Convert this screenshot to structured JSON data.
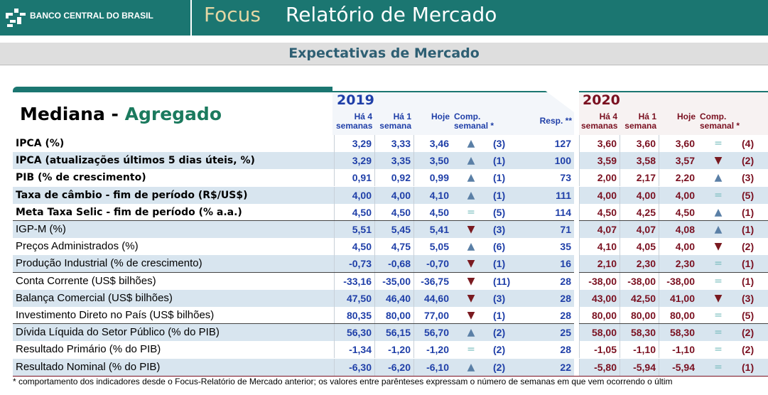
{
  "header": {
    "logo": "BANCO CENTRAL DO BRASIL",
    "brand": "Focus",
    "title": "Relatório de Mercado"
  },
  "subtitle": "Expectativas de Mercado",
  "table": {
    "title": [
      "Mediana - ",
      "Agregado"
    ],
    "years": [
      "2019",
      "2020"
    ],
    "cols2019": [
      "Há 4 semanas",
      "Há 1 semana",
      "Hoje",
      "Comp.\nsemanal *",
      "Resp. **"
    ],
    "cols2020": [
      "Há 4 semanas",
      "Há 1 semana",
      "Hoje",
      "Comp.\nsemanal *"
    ],
    "rows": [
      {
        "label": "IPCA (%)",
        "cells": [
          "3,29",
          "3,33",
          "3,46",
          "▲",
          "(3)",
          "127",
          "3,60",
          "3,60",
          "3,60",
          "=",
          "(4)"
        ]
      },
      {
        "label": "IPCA (atualizações últimos 5 dias úteis, %)",
        "cells": [
          "3,29",
          "3,35",
          "3,50",
          "▲",
          "(1)",
          "100",
          "3,59",
          "3,58",
          "3,57",
          "▼",
          "(2)"
        ]
      },
      {
        "label": "PIB (% de crescimento)",
        "cells": [
          "0,91",
          "0,92",
          "0,99",
          "▲",
          "(1)",
          "73",
          "2,00",
          "2,17",
          "2,20",
          "▲",
          "(3)"
        ]
      },
      {
        "label": "Taxa de câmbio - fim de período (R$/US$)",
        "cells": [
          "4,00",
          "4,00",
          "4,10",
          "▲",
          "(1)",
          "111",
          "4,00",
          "4,00",
          "4,00",
          "=",
          "(5)"
        ]
      },
      {
        "label": "Meta Taxa Selic - fim de período (% a.a.)",
        "cells": [
          "4,50",
          "4,50",
          "4,50",
          "=",
          "(5)",
          "114",
          "4,50",
          "4,25",
          "4,50",
          "▲",
          "(1)"
        ]
      },
      {
        "label": "IGP-M (%)",
        "cells": [
          "5,51",
          "5,45",
          "5,41",
          "▼",
          "(3)",
          "71",
          "4,07",
          "4,07",
          "4,08",
          "▲",
          "(1)"
        ]
      },
      {
        "label": "Preços Administrados (%)",
        "cells": [
          "4,50",
          "4,75",
          "5,05",
          "▲",
          "(6)",
          "35",
          "4,10",
          "4,05",
          "4,00",
          "▼",
          "(2)"
        ]
      },
      {
        "label": "Produção Industrial (% de crescimento)",
        "cells": [
          "-0,73",
          "-0,68",
          "-0,70",
          "▼",
          "(1)",
          "16",
          "2,10",
          "2,30",
          "2,30",
          "=",
          "(1)"
        ]
      },
      {
        "label": "Conta Corrente (US$ bilhões)",
        "cells": [
          "-33,16",
          "-35,00",
          "-36,75",
          "▼",
          "(11)",
          "28",
          "-38,00",
          "-38,00",
          "-38,00",
          "=",
          "(1)"
        ]
      },
      {
        "label": "Balança Comercial (US$ bilhões)",
        "cells": [
          "47,50",
          "46,40",
          "44,60",
          "▼",
          "(3)",
          "28",
          "43,00",
          "42,50",
          "41,00",
          "▼",
          "(3)"
        ]
      },
      {
        "label": "Investimento Direto no País (US$ bilhões)",
        "cells": [
          "80,35",
          "80,00",
          "77,00",
          "▼",
          "(1)",
          "28",
          "80,00",
          "80,00",
          "80,00",
          "=",
          "(5)"
        ]
      },
      {
        "label": "Dívida Líquida do Setor Público (% do PIB)",
        "cells": [
          "56,30",
          "56,15",
          "56,70",
          "▲",
          "(2)",
          "25",
          "58,00",
          "58,30",
          "58,30",
          "=",
          "(2)"
        ]
      },
      {
        "label": "Resultado Primário (% do PIB)",
        "cells": [
          "-1,34",
          "-1,20",
          "-1,20",
          "=",
          "(2)",
          "28",
          "-1,05",
          "-1,10",
          "-1,10",
          "=",
          "(2)"
        ]
      },
      {
        "label": "Resultado Nominal (% do PIB)",
        "cells": [
          "-6,30",
          "-6,20",
          "-6,10",
          "▲",
          "(2)",
          "22",
          "-5,80",
          "-5,94",
          "-5,94",
          "=",
          "(1)"
        ]
      }
    ],
    "footnote": "* comportamento dos indicadores desde o Focus-Relatório de Mercado anterior; os valores entre parênteses expressam o número de semanas em que vem ocorrendo o últim"
  }
}
